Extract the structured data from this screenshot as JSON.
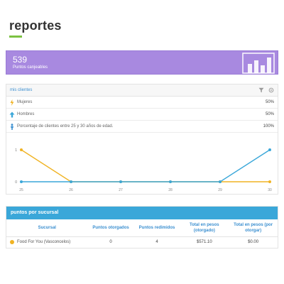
{
  "page": {
    "title": "reportes"
  },
  "stat_card": {
    "value": "539",
    "label": "Puntos canjeables",
    "icon": "bar-chart-icon",
    "color": "#a889e0"
  },
  "clients_panel": {
    "title": "mis clientes",
    "header_icons": [
      "filter-icon",
      "settings-icon"
    ],
    "rows": [
      {
        "icon": "female-icon",
        "icon_color": "#f0b323",
        "label": "Mujeres",
        "value": "50%"
      },
      {
        "icon": "male-icon",
        "icon_color": "#3aa7d9",
        "label": "Hombres",
        "value": "50%"
      },
      {
        "icon": "person-icon",
        "icon_color": "#3b8fd0",
        "label": "Porcentaje de clientes entre 25 y 30 años de edad.",
        "value": "100%"
      }
    ]
  },
  "chart_data": {
    "type": "line",
    "x": [
      "25",
      "26",
      "27",
      "28",
      "29",
      "30"
    ],
    "series": [
      {
        "color": "#f0b323",
        "values": [
          1,
          0,
          0,
          0,
          0,
          0
        ]
      },
      {
        "color": "#3aa7d9",
        "values": [
          0,
          0,
          0,
          0,
          0,
          1
        ]
      }
    ],
    "y_ticks": [
      "0",
      "1"
    ],
    "ylim": [
      0,
      1
    ],
    "title": "",
    "xlabel": "",
    "ylabel": ""
  },
  "sucursal_panel": {
    "title": "puntos por sucursal",
    "columns": [
      "Sucursal",
      "Puntos otorgados",
      "Puntos redimidos",
      "Total en pesos (otorgado)",
      "Total en pesos (por otorgar)"
    ],
    "rows": [
      {
        "branch": "Food For You (Vasconcelos)",
        "dot_color": "#f0b323",
        "given": "0",
        "redeemed": "4",
        "total_given": "$571.10",
        "total_pending": "$0.00"
      }
    ]
  }
}
